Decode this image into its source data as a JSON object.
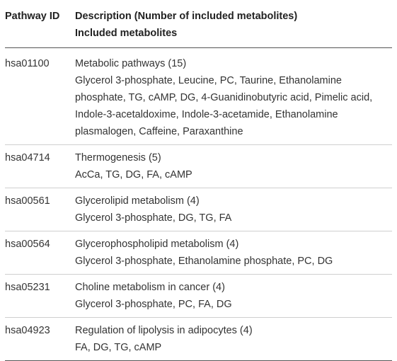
{
  "table": {
    "header": {
      "pathway_id": "Pathway ID",
      "description": "Description (Number of included metabolites)",
      "included": "Included metabolites"
    },
    "rows": [
      {
        "id": "hsa01100",
        "description": "Metabolic pathways (15)",
        "metabolite_lines": [
          "Glycerol 3-phosphate, Leucine, PC, Taurine, Ethanolamine",
          "phosphate, TG, cAMP, DG, 4-Guanidinobutyric acid, Pimelic acid,",
          "Indole-3-acetaldoxime, Indole-3-acetamide, Ethanolamine",
          "plasmalogen, Caffeine, Paraxanthine"
        ]
      },
      {
        "id": "hsa04714",
        "description": "Thermogenesis (5)",
        "metabolite_lines": [
          "AcCa, TG, DG, FA, cAMP"
        ]
      },
      {
        "id": "hsa00561",
        "description": "Glycerolipid metabolism (4)",
        "metabolite_lines": [
          "Glycerol 3-phosphate, DG, TG, FA"
        ]
      },
      {
        "id": "hsa00564",
        "description": "Glycerophospholipid metabolism (4)",
        "metabolite_lines": [
          "Glycerol 3-phosphate, Ethanolamine phosphate, PC, DG"
        ]
      },
      {
        "id": "hsa05231",
        "description": "Choline metabolism in cancer (4)",
        "metabolite_lines": [
          "Glycerol 3-phosphate, PC, FA, DG"
        ]
      },
      {
        "id": "hsa04923",
        "description": "Regulation of lipolysis in adipocytes (4)",
        "metabolite_lines": [
          "FA, DG, TG, cAMP"
        ]
      }
    ]
  }
}
